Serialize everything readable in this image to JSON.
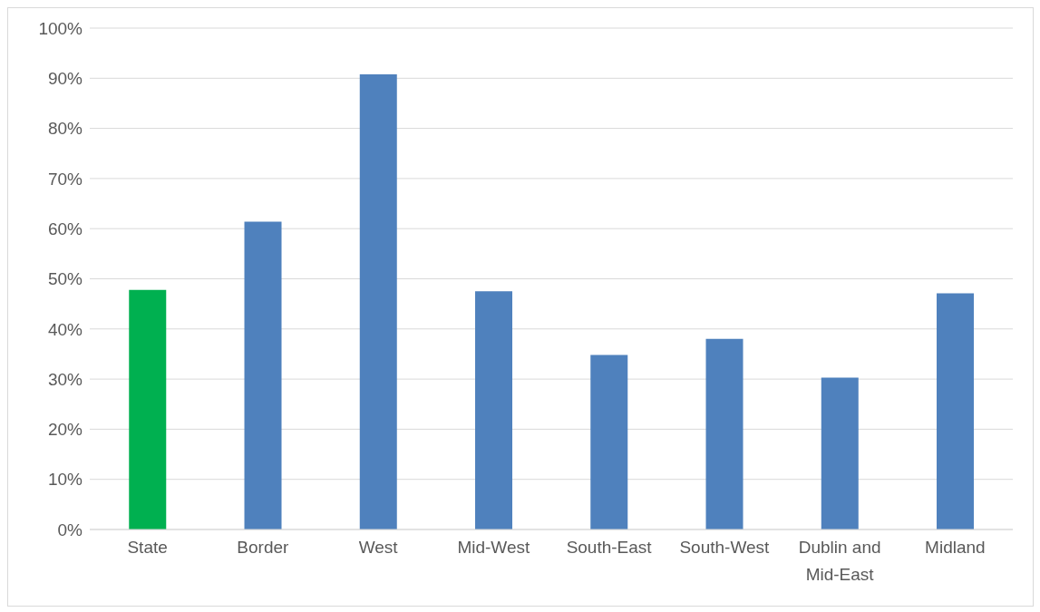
{
  "chart_data": {
    "type": "bar",
    "categories": [
      "State",
      "Border",
      "West",
      "Mid-West",
      "South-East",
      "South-West",
      "Dublin and Mid-East",
      "Midland"
    ],
    "values": [
      47.8,
      61.4,
      90.8,
      47.5,
      34.8,
      38.0,
      30.3,
      47.1
    ],
    "colors": [
      "#00b050",
      "#4f81bd",
      "#4f81bd",
      "#4f81bd",
      "#4f81bd",
      "#4f81bd",
      "#4f81bd",
      "#4f81bd"
    ],
    "ylim": [
      0,
      100
    ],
    "yticks": [
      {
        "value": 0,
        "label": "0%"
      },
      {
        "value": 10,
        "label": "10%"
      },
      {
        "value": 20,
        "label": "20%"
      },
      {
        "value": 30,
        "label": "30%"
      },
      {
        "value": 40,
        "label": "40%"
      },
      {
        "value": 50,
        "label": "50%"
      },
      {
        "value": 60,
        "label": "60%"
      },
      {
        "value": 70,
        "label": "70%"
      },
      {
        "value": 80,
        "label": "80%"
      },
      {
        "value": 90,
        "label": "90%"
      },
      {
        "value": 100,
        "label": "100%"
      }
    ],
    "grid": "y"
  }
}
